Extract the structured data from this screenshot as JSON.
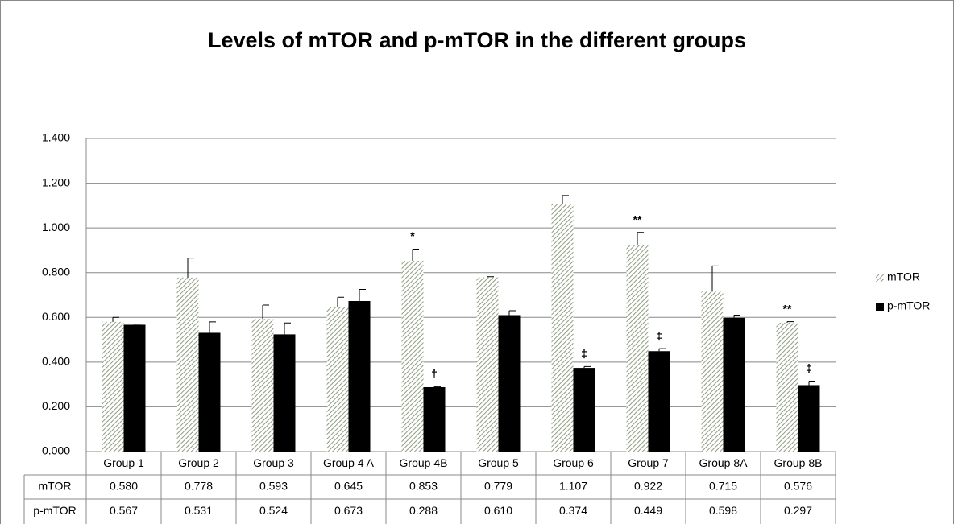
{
  "chart_data": {
    "type": "bar",
    "title": "Levels of mTOR and p-mTOR in the different groups",
    "categories": [
      "Group 1",
      "Group 2",
      "Group 3",
      "Group 4 A",
      "Group 4B",
      "Group 5",
      "Group 6",
      "Group 7",
      "Group 8A",
      "Group 8B"
    ],
    "series": [
      {
        "name": "mTOR",
        "color": "#8f9c80",
        "values": [
          0.58,
          0.778,
          0.593,
          0.645,
          0.853,
          0.779,
          1.107,
          0.922,
          0.715,
          0.576
        ],
        "value_labels": [
          "0.580",
          "0.778",
          "0.593",
          "0.645",
          "0.853",
          "0.779",
          "1.107",
          "0.922",
          "0.715",
          "0.576"
        ],
        "errors": [
          0.02,
          0.087,
          0.062,
          0.045,
          0.052,
          0.003,
          0.038,
          0.058,
          0.115,
          0.005
        ],
        "annotations": [
          null,
          null,
          null,
          null,
          "*",
          null,
          null,
          "**",
          null,
          "**"
        ]
      },
      {
        "name": "p-mTOR",
        "color": "#000000",
        "values": [
          0.567,
          0.531,
          0.524,
          0.673,
          0.288,
          0.61,
          0.374,
          0.449,
          0.598,
          0.297
        ],
        "value_labels": [
          "0.567",
          "0.531",
          "0.524",
          "0.673",
          "0.288",
          "0.610",
          "0.374",
          "0.449",
          "0.598",
          "0.297"
        ],
        "errors": [
          0.003,
          0.049,
          0.051,
          0.052,
          0.002,
          0.02,
          0.006,
          0.011,
          0.012,
          0.018
        ],
        "annotations": [
          null,
          null,
          null,
          null,
          "†",
          null,
          "‡",
          "‡",
          null,
          "‡"
        ]
      }
    ],
    "ylim": [
      0,
      1.4
    ],
    "yticks": [
      {
        "value": 0,
        "label": "0.000"
      },
      {
        "value": 0.2,
        "label": "0.200"
      },
      {
        "value": 0.4,
        "label": "0.400"
      },
      {
        "value": 0.6,
        "label": "0.600"
      },
      {
        "value": 0.8,
        "label": "0.800"
      },
      {
        "value": 1,
        "label": "1.000"
      },
      {
        "value": 1.2,
        "label": "1.200"
      },
      {
        "value": 1.4,
        "label": "1.400"
      }
    ],
    "grid": true,
    "legend": "right"
  }
}
